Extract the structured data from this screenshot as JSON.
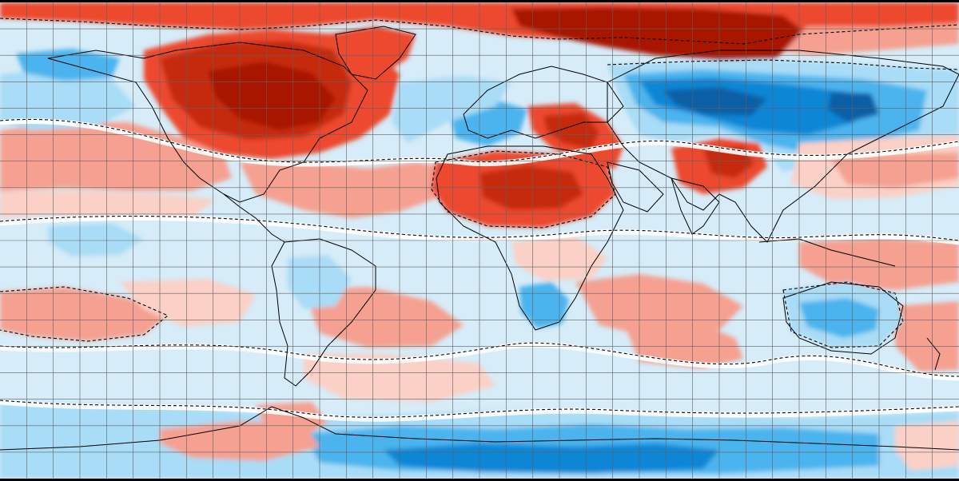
{
  "map": {
    "kind": "global-temperature-anomaly",
    "projection": "equirectangular",
    "graticule": true,
    "graticule_step_deg": 10,
    "border_color": "#000000",
    "palette": {
      "warm_strong": "#a81400",
      "warm_dark": "#c62a0a",
      "warm_mid": "#ec4a2e",
      "warm_light": "#f5a090",
      "warm_pale": "#fbd0c6",
      "neutral": "#ffffff",
      "cool_pale": "#d6ecf8",
      "cool_light": "#a9dcf6",
      "cool_mid": "#4cb4ee",
      "cool_strong": "#0a86d6",
      "cool_deep": "#0b5fa5",
      "line": "#000000",
      "graticule": "#606060"
    }
  }
}
